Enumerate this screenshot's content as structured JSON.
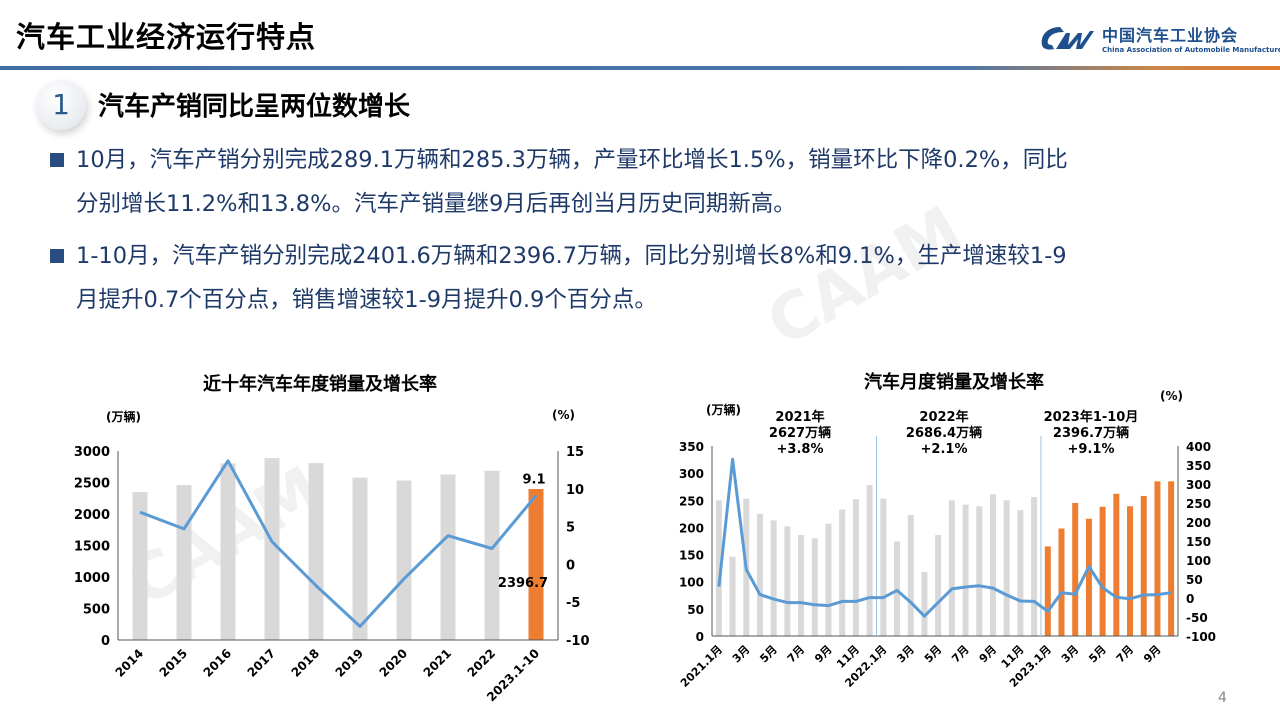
{
  "header": {
    "title": "汽车工业经济运行特点",
    "logo_cn": "中国汽车工业协会",
    "logo_en": "China Association of Automobile Manufacturers"
  },
  "section": {
    "number": "1",
    "title": "汽车产销同比呈两位数增长"
  },
  "bullets": [
    {
      "line1": "10月，汽车产销分别完成289.1万辆和285.3万辆，产量环比增长1.5%，销量环比下降0.2%，同比",
      "line2": "分别增长11.2%和13.8%。汽车产销量继9月后再创当月历史同期新高。"
    },
    {
      "line1": "1-10月，汽车产销分别完成2401.6万辆和2396.7万辆，同比分别增长8%和9.1%，生产增速较1-9",
      "line2": "月提升0.7个百分点，销售增速较1-9月提升0.9个百分点。"
    }
  ],
  "page_number": "4",
  "colors": {
    "bar": "#d9d9d9",
    "highlight": "#ed7d31",
    "line": "#5b9bd5",
    "text": "#1f3a68"
  },
  "chart_data": [
    {
      "type": "bar",
      "title": "近十年汽车年度销量及增长率",
      "ylabel": "(万辆)",
      "y2label": "(%)",
      "categories": [
        "2014",
        "2015",
        "2016",
        "2017",
        "2018",
        "2019",
        "2020",
        "2021",
        "2022",
        "2023.1-10"
      ],
      "series": [
        {
          "name": "销量",
          "type": "bar",
          "axis": "left",
          "values": [
            2349,
            2460,
            2803,
            2888,
            2808,
            2577,
            2531,
            2627,
            2686,
            2396.7
          ]
        },
        {
          "name": "增长率",
          "type": "line",
          "axis": "right",
          "values": [
            6.9,
            4.7,
            13.7,
            3.0,
            -2.8,
            -8.2,
            -1.9,
            3.8,
            2.1,
            9.1
          ]
        }
      ],
      "highlight_index": 9,
      "data_labels": {
        "bar": "2396.7",
        "line": "9.1"
      },
      "ylim": [
        0,
        3000
      ],
      "yticks": [
        "0",
        "500",
        "1000",
        "1500",
        "2000",
        "2500",
        "3000"
      ],
      "y2lim": [
        -10,
        15
      ],
      "y2ticks": [
        "-10",
        "-5",
        "0",
        "5",
        "10",
        "15"
      ]
    },
    {
      "type": "bar",
      "title": "汽车月度销量及增长率",
      "ylabel": "(万辆)",
      "y2label": "(%)",
      "categories": [
        "2021.1月",
        "2月",
        "3月",
        "4月",
        "5月",
        "6月",
        "7月",
        "8月",
        "9月",
        "10月",
        "11月",
        "12月",
        "2022.1月",
        "2月",
        "3月",
        "4月",
        "5月",
        "6月",
        "7月",
        "8月",
        "9月",
        "10月",
        "11月",
        "12月",
        "2023.1月",
        "2月",
        "3月",
        "4月",
        "5月",
        "6月",
        "7月",
        "8月",
        "9月",
        "10月"
      ],
      "xtick_labels": [
        "2021.1月",
        "",
        "3月",
        "",
        "5月",
        "",
        "7月",
        "",
        "9月",
        "",
        "11月",
        "",
        "2022.1月",
        "",
        "3月",
        "",
        "5月",
        "",
        "7月",
        "",
        "9月",
        "",
        "11月",
        "",
        "2023.1月",
        "",
        "3月",
        "",
        "5月",
        "",
        "7月",
        "",
        "9月",
        ""
      ],
      "series": [
        {
          "name": "销量",
          "type": "bar",
          "axis": "left",
          "values": [
            250,
            146,
            253,
            225,
            213,
            202,
            186,
            180,
            207,
            233,
            252,
            278,
            253,
            174,
            223,
            118,
            186,
            250,
            242,
            239,
            261,
            250,
            232,
            256,
            165,
            198,
            245,
            216,
            238,
            262,
            239,
            258,
            285,
            285
          ]
        },
        {
          "name": "增长率",
          "type": "line",
          "axis": "right",
          "values": [
            30,
            365,
            75,
            9,
            -3,
            -12,
            -12,
            -18,
            -20,
            -9,
            -9,
            1,
            1,
            20,
            -11,
            -48,
            -12,
            24,
            29,
            32,
            26,
            8,
            -8,
            -9,
            -35,
            14,
            10,
            83,
            27,
            2,
            -2,
            8,
            9,
            14
          ]
        }
      ],
      "highlight_from_index": 24,
      "annotations": [
        {
          "l1": "2021年",
          "l2": "2627万辆",
          "l3": "+3.8%"
        },
        {
          "l1": "2022年",
          "l2": "2686.4万辆",
          "l3": "+2.1%"
        },
        {
          "l1": "2023年1-10月",
          "l2": "2396.7万辆",
          "l3": "+9.1%"
        }
      ],
      "ylim": [
        0,
        350
      ],
      "yticks": [
        "0",
        "50",
        "100",
        "150",
        "200",
        "250",
        "300",
        "350"
      ],
      "y2lim": [
        -100,
        400
      ],
      "y2ticks": [
        "-100",
        "-50",
        "0",
        "50",
        "100",
        "150",
        "200",
        "250",
        "300",
        "350",
        "400"
      ]
    }
  ]
}
